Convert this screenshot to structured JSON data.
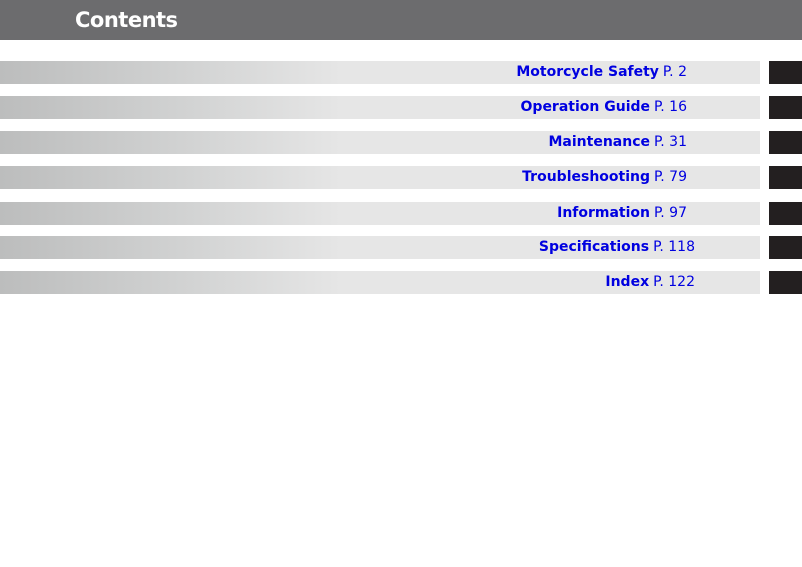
{
  "header": {
    "title": "Contents"
  },
  "entries": [
    {
      "label": "Motorcycle Safety",
      "page": "P. 2"
    },
    {
      "label": "Operation Guide",
      "page": "P. 16"
    },
    {
      "label": "Maintenance",
      "page": "P. 31"
    },
    {
      "label": "Troubleshooting",
      "page": "P. 79"
    },
    {
      "label": "Information",
      "page": "P. 97"
    },
    {
      "label": "Specifications",
      "page": "P. 118"
    },
    {
      "label": "Index",
      "page": "P. 122"
    }
  ]
}
